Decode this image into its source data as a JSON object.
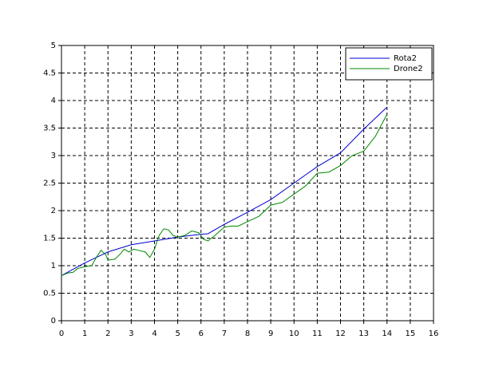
{
  "chart_data": {
    "type": "line",
    "x": [
      0,
      0.3,
      0.5,
      0.7,
      1,
      1.3,
      1.5,
      1.7,
      1.9,
      2,
      2.3,
      2.5,
      2.7,
      2.9,
      3,
      3.1,
      3.3,
      3.6,
      3.8,
      4,
      4.2,
      4.4,
      4.6,
      4.8,
      5,
      5.3,
      5.6,
      5.9,
      6,
      6.1,
      6.3,
      6.6,
      7,
      7.3,
      7.6,
      8,
      8.5,
      9,
      9.5,
      10,
      10.5,
      11,
      11.5,
      12,
      12.5,
      13,
      13.5,
      14
    ],
    "series": [
      {
        "name": "Rota2",
        "color": "#0000cc",
        "values": [
          0.82,
          null,
          null,
          null,
          1.05,
          null,
          null,
          null,
          null,
          1.25,
          null,
          null,
          null,
          null,
          1.38,
          null,
          null,
          null,
          null,
          1.45,
          null,
          null,
          null,
          null,
          1.52,
          null,
          null,
          null,
          1.57,
          null,
          1.58,
          null,
          1.75,
          null,
          null,
          1.97,
          null,
          2.2,
          null,
          2.5,
          null,
          2.8,
          null,
          3.05,
          null,
          3.48,
          null,
          3.88
        ]
      },
      {
        "name": "Drone2",
        "color": "#008800",
        "values": [
          0.82,
          0.87,
          0.88,
          0.95,
          0.98,
          1.0,
          1.15,
          1.28,
          1.2,
          1.1,
          1.12,
          1.2,
          1.3,
          1.25,
          1.27,
          1.3,
          1.28,
          1.25,
          1.15,
          1.3,
          1.55,
          1.67,
          1.65,
          1.55,
          1.52,
          1.55,
          1.63,
          1.6,
          1.55,
          1.48,
          1.45,
          1.55,
          1.7,
          1.72,
          1.72,
          1.8,
          1.9,
          2.1,
          2.15,
          2.3,
          2.45,
          2.68,
          2.7,
          2.82,
          3.0,
          3.08,
          3.35,
          3.75
        ]
      }
    ],
    "xlim": [
      0,
      16
    ],
    "xticks": [
      0,
      1,
      2,
      3,
      4,
      5,
      6,
      7,
      8,
      9,
      10,
      11,
      12,
      13,
      14,
      15,
      16
    ],
    "ylim": [
      0,
      5
    ],
    "yticks": [
      0,
      0.5,
      1,
      1.5,
      2,
      2.5,
      3,
      3.5,
      4,
      4.5,
      5
    ],
    "grid": true,
    "legend": "upper right"
  }
}
